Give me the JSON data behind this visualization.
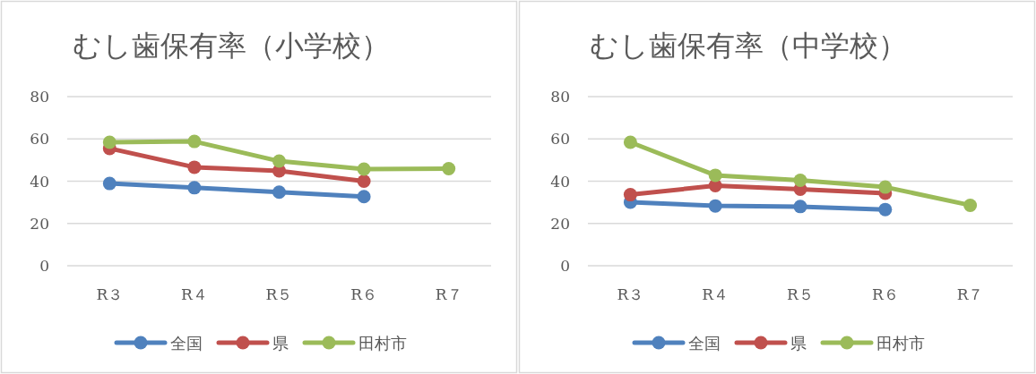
{
  "chart_data": [
    {
      "type": "line",
      "title": "むし歯保有率（小学校）",
      "categories": [
        "R３",
        "R４",
        "R５",
        "R６",
        "R７"
      ],
      "ylim": [
        0,
        80
      ],
      "yticks": [
        0,
        20,
        40,
        60,
        80
      ],
      "grid": "y",
      "legend": "bottom",
      "marker": "circle",
      "series": [
        {
          "name": "全国",
          "color": "#4f81bd",
          "values": [
            38.9,
            36.9,
            34.8,
            32.7,
            null
          ]
        },
        {
          "name": "県",
          "color": "#c0504d",
          "values": [
            55.5,
            46.6,
            44.9,
            40.0,
            null
          ]
        },
        {
          "name": "田村市",
          "color": "#9bbb59",
          "values": [
            58.4,
            58.8,
            49.5,
            45.7,
            45.9
          ]
        }
      ]
    },
    {
      "type": "line",
      "title": "むし歯保有率（中学校）",
      "categories": [
        "R３",
        "R４",
        "R５",
        "R６",
        "R７"
      ],
      "ylim": [
        0,
        80
      ],
      "yticks": [
        0,
        20,
        40,
        60,
        80
      ],
      "grid": "y",
      "legend": "bottom",
      "marker": "circle",
      "series": [
        {
          "name": "全国",
          "color": "#4f81bd",
          "values": [
            30.1,
            28.3,
            28.0,
            26.6,
            null
          ]
        },
        {
          "name": "県",
          "color": "#c0504d",
          "values": [
            33.6,
            37.9,
            36.2,
            34.3,
            null
          ]
        },
        {
          "name": "田村市",
          "color": "#9bbb59",
          "values": [
            58.4,
            42.8,
            40.4,
            37.2,
            28.6
          ]
        }
      ]
    }
  ]
}
